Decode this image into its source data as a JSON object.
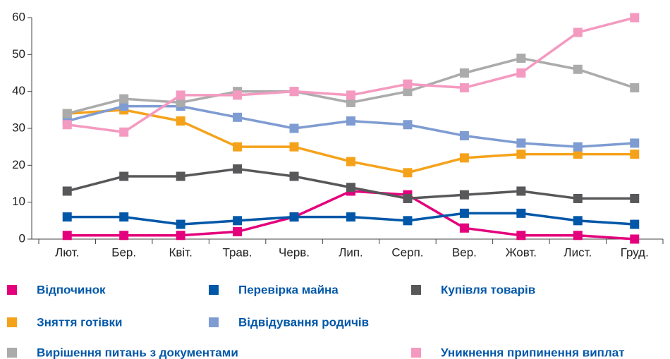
{
  "chart_data": {
    "type": "line",
    "categories": [
      "Лют.",
      "Бер.",
      "Квіт.",
      "Трав.",
      "Черв.",
      "Лип.",
      "Серп.",
      "Вер.",
      "Жовт.",
      "Лист.",
      "Груд."
    ],
    "series": [
      {
        "name": "Відпочинок",
        "color": "#e4007c",
        "values": [
          1,
          1,
          1,
          2,
          6,
          13,
          12,
          3,
          1,
          1,
          0
        ]
      },
      {
        "name": "Перевірка майна",
        "color": "#0057a8",
        "values": [
          6,
          6,
          4,
          5,
          6,
          6,
          5,
          7,
          7,
          5,
          4
        ]
      },
      {
        "name": "Купівля товарів",
        "color": "#58585a",
        "values": [
          13,
          17,
          17,
          19,
          17,
          14,
          11,
          12,
          13,
          11,
          11
        ]
      },
      {
        "name": "Зняття готівки",
        "color": "#f5a21b",
        "values": [
          34,
          35,
          32,
          25,
          25,
          21,
          18,
          22,
          23,
          23,
          23
        ]
      },
      {
        "name": "Відвідування родичів",
        "color": "#7f9cd2",
        "values": [
          32,
          36,
          36,
          33,
          30,
          32,
          31,
          28,
          26,
          25,
          26
        ]
      },
      {
        "name": "Вирішення питань з документами",
        "color": "#ababab",
        "values": [
          34,
          38,
          37,
          40,
          40,
          37,
          40,
          45,
          49,
          46,
          41
        ]
      },
      {
        "name": "Уникнення припинення виплат",
        "color": "#f49ac0",
        "values": [
          31,
          29,
          39,
          39,
          40,
          39,
          42,
          41,
          45,
          56,
          60
        ]
      }
    ],
    "ylim": [
      0,
      60
    ],
    "yticks": [
      0,
      10,
      20,
      30,
      40,
      50,
      60
    ]
  }
}
